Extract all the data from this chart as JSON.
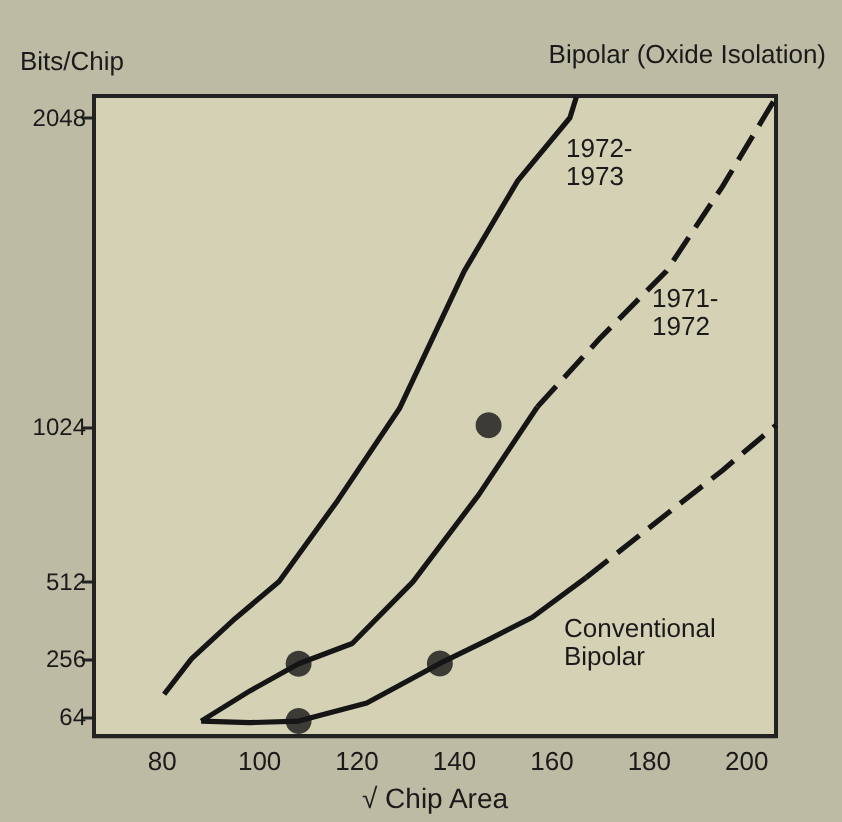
{
  "chart_data": {
    "type": "line",
    "xlabel": "√ Chip Area",
    "ylabel": "Bits/Chip",
    "xlim": [
      66,
      206
    ],
    "xticks": [
      80,
      100,
      120,
      140,
      160,
      180,
      200
    ],
    "ylim": [
      0,
      2120
    ],
    "yticks": [
      64,
      256,
      512,
      1024,
      2048
    ],
    "grid": false,
    "marker": "none",
    "series": [
      {
        "color": "#151515",
        "line_style": "solid",
        "x": [
          80.4,
          86,
          95,
          104,
          116,
          128.7,
          142,
          153,
          163.7,
          165
        ],
        "values": [
          139,
          256,
          390,
          512,
          780,
          1085,
          1540,
          1840,
          2048,
          2116
        ]
      },
      {
        "color": "#151515",
        "line_style": "solid",
        "x": [
          88,
          98,
          108,
          119,
          131.5,
          145,
          157
        ],
        "values": [
          50,
          150,
          240,
          307,
          512,
          800,
          1090
        ]
      },
      {
        "color": "#151515",
        "line_style": "dashed",
        "x": [
          157,
          170,
          183.5,
          195,
          206
        ],
        "values": [
          1090,
          1320,
          1540,
          1820,
          2116
        ]
      },
      {
        "color": "#151515",
        "line_style": "solid",
        "x": [
          88,
          98,
          108,
          122,
          137,
          147,
          156,
          167
        ],
        "values": [
          50,
          45,
          50,
          110,
          241,
          320,
          394,
          525
        ]
      },
      {
        "color": "#151515",
        "line_style": "dashed",
        "x": [
          167,
          183.5,
          195,
          206
        ],
        "values": [
          525,
          735,
          880,
          1030
        ]
      },
      {
        "type": "scatter",
        "color": "#151515",
        "marker": "circle",
        "x": [
          108,
          108,
          137,
          147
        ],
        "values": [
          240,
          50,
          241,
          1030
        ]
      }
    ],
    "annotations": [
      "Bipolar (Oxide Isolation)",
      "1972-\n1973",
      "1971-\n1972",
      "Conventional\nBipolar"
    ]
  }
}
